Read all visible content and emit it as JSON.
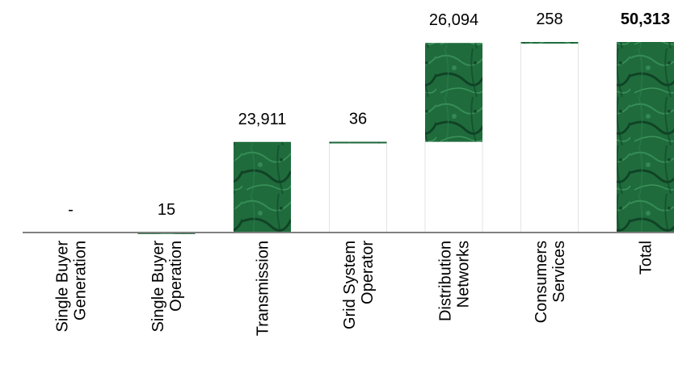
{
  "chart_data": {
    "type": "bar",
    "subtype": "waterfall",
    "title": "",
    "xlabel": "",
    "ylabel": "",
    "grid": false,
    "legend": "none",
    "categories": [
      [
        "Single Buyer",
        "Generation"
      ],
      [
        "Single Buyer",
        "Operation"
      ],
      [
        "Transmission"
      ],
      [
        "Grid System",
        "Operator"
      ],
      [
        "Distribution",
        "Networks"
      ],
      [
        "Consumers",
        "Services"
      ],
      [
        "Total"
      ]
    ],
    "values": [
      0,
      15,
      23911,
      36,
      26094,
      258,
      50313
    ],
    "data_labels": [
      "-",
      "15",
      "23,911",
      "36",
      "26,094",
      "258",
      "50,313"
    ],
    "is_total": [
      false,
      false,
      false,
      false,
      false,
      false,
      true
    ],
    "ylim": [
      0,
      52000
    ],
    "colors": {
      "bar_fill": "#1f6b3c",
      "bar_dark": "#0d3a20",
      "connector_fill": "#ffffff",
      "connector_stroke": "#e3e3e3",
      "axis": "#808080"
    }
  }
}
